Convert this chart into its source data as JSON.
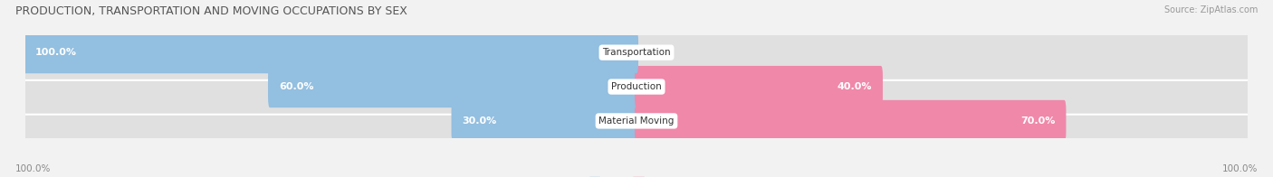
{
  "title": "PRODUCTION, TRANSPORTATION AND MOVING OCCUPATIONS BY SEX",
  "source": "Source: ZipAtlas.com",
  "categories": [
    "Transportation",
    "Production",
    "Material Moving"
  ],
  "male_pct": [
    100.0,
    60.0,
    30.0
  ],
  "female_pct": [
    0.0,
    40.0,
    70.0
  ],
  "male_color": "#93bfe0",
  "female_color": "#f088aa",
  "bar_height": 0.62,
  "bg_color": "#f2f2f2",
  "bar_bg_color": "#e0e0e0",
  "figsize": [
    14.06,
    1.96
  ],
  "dpi": 100,
  "axis_label_left": "100.0%",
  "axis_label_right": "100.0%",
  "male_label_color_inside": "#ffffff",
  "female_label_color_inside": "#ffffff",
  "label_color_outside": "#666666",
  "center_label_color": "#333333"
}
